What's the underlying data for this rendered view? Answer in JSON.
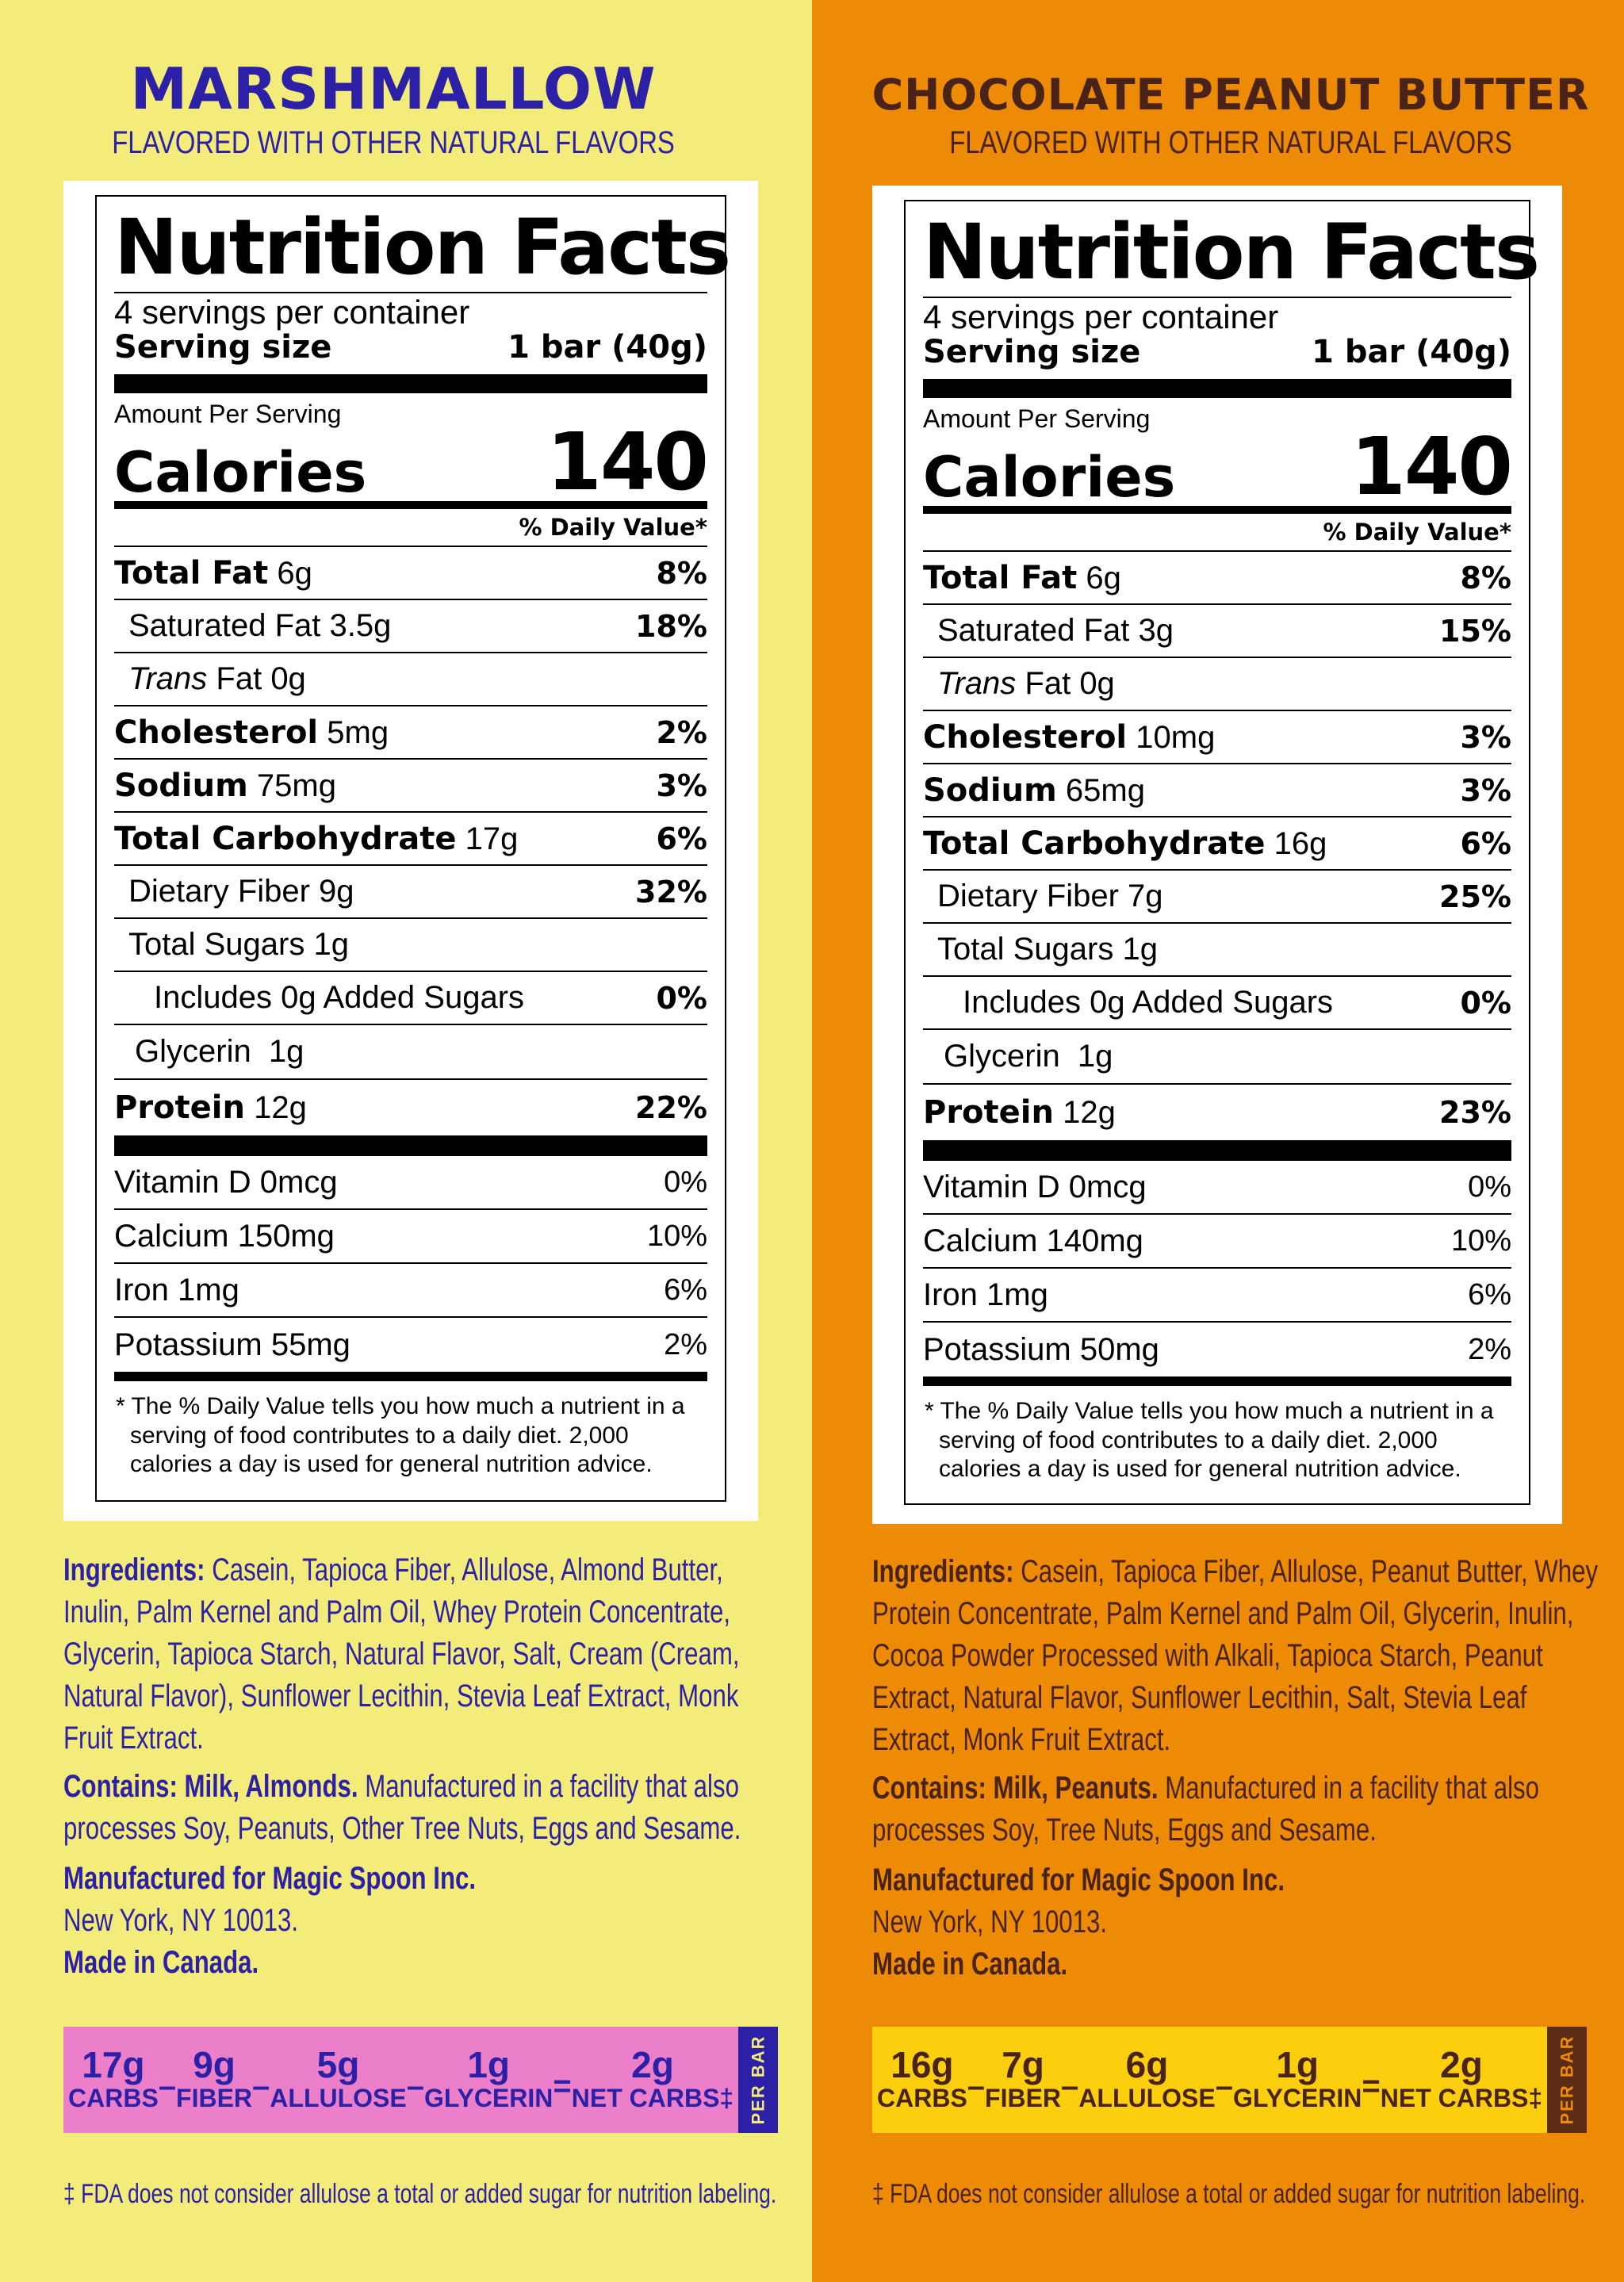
{
  "left": {
    "flavor": "MARSHMALLOW",
    "subtitle": "FLAVORED WITH OTHER NATURAL FLAVORS",
    "nf": {
      "title": "Nutrition Facts",
      "servings": "4 servings per container",
      "serving_label": "Serving size",
      "serving_value": "1 bar (40g)",
      "amount": "Amount Per Serving",
      "calories_label": "Calories",
      "calories": "140",
      "dv_header": "% Daily Value*",
      "total_fat": {
        "label": "Total Fat",
        "amt": "6g",
        "pct": "8%"
      },
      "sat_fat": {
        "label": "Saturated Fat 3.5g",
        "pct": "18%"
      },
      "trans_fat": {
        "italic": "Trans",
        "label": "Fat 0g"
      },
      "cholesterol": {
        "label": "Cholesterol",
        "amt": "5mg",
        "pct": "2%"
      },
      "sodium": {
        "label": "Sodium",
        "amt": "75mg",
        "pct": "3%"
      },
      "carb": {
        "label": "Total Carbohydrate",
        "amt": "17g",
        "pct": "6%"
      },
      "fiber": {
        "label": "Dietary Fiber 9g",
        "pct": "32%"
      },
      "sugars": {
        "label": "Total Sugars 1g"
      },
      "added_sugars": {
        "label": "Includes 0g Added Sugars",
        "pct": "0%"
      },
      "glycerin": {
        "label": "Glycerin  1g"
      },
      "protein": {
        "label": "Protein",
        "amt": "12g",
        "pct": "22%"
      },
      "vitd": {
        "label": "Vitamin D 0mcg",
        "pct": "0%"
      },
      "calcium": {
        "label": "Calcium 150mg",
        "pct": "10%"
      },
      "iron": {
        "label": "Iron 1mg",
        "pct": "6%"
      },
      "potassium": {
        "label": "Potassium 55mg",
        "pct": "2%"
      },
      "footnote": "* The % Daily Value tells you how much a nutrient in a serving of food contributes to a daily diet. 2,000 calories a day is used for general nutrition advice."
    },
    "ingredients_label": "Ingredients:",
    "ingredients": "Casein, Tapioca Fiber, Allulose, Almond Butter, Inulin, Palm Kernel and Palm Oil, Whey Protein Concentrate, Glycerin, Tapioca Starch, Natural Flavor, Salt, Cream (Cream, Natural Flavor), Sunflower Lecithin, Stevia Leaf Extract, Monk Fruit Extract.",
    "contains_label": "Contains: Milk, Almonds.",
    "contains": "Manufactured in a facility that also processes Soy, Peanuts, Other Tree Nuts, Eggs and Sesame.",
    "mfg_line1": "Manufactured for Magic Spoon Inc.",
    "mfg_line2": "New York, NY 10013.",
    "mfg_line3": "Made in Canada.",
    "netcarbs": {
      "carbs_val": "17g",
      "carbs_lab": "CARBS",
      "fiber_val": "9g",
      "fiber_lab": "FIBER",
      "allulose_val": "5g",
      "allulose_lab": "ALLULOSE",
      "glycerin_val": "1g",
      "glycerin_lab": "GLYCERIN",
      "net_val": "2g",
      "net_lab": "NET CARBS‡",
      "minus": "–",
      "equals": "=",
      "per_bar": "PER BAR"
    },
    "fda_note": "‡ FDA does not consider allulose a total or added sugar for nutrition labeling."
  },
  "right": {
    "flavor": "CHOCOLATE PEANUT BUTTER",
    "subtitle": "FLAVORED WITH OTHER NATURAL FLAVORS",
    "nf": {
      "title": "Nutrition Facts",
      "servings": "4 servings per container",
      "serving_label": "Serving size",
      "serving_value": "1 bar (40g)",
      "amount": "Amount Per Serving",
      "calories_label": "Calories",
      "calories": "140",
      "dv_header": "% Daily Value*",
      "total_fat": {
        "label": "Total Fat",
        "amt": "6g",
        "pct": "8%"
      },
      "sat_fat": {
        "label": "Saturated Fat 3g",
        "pct": "15%"
      },
      "trans_fat": {
        "italic": "Trans",
        "label": "Fat 0g"
      },
      "cholesterol": {
        "label": "Cholesterol",
        "amt": "10mg",
        "pct": "3%"
      },
      "sodium": {
        "label": "Sodium",
        "amt": "65mg",
        "pct": "3%"
      },
      "carb": {
        "label": "Total Carbohydrate",
        "amt": "16g",
        "pct": "6%"
      },
      "fiber": {
        "label": "Dietary Fiber 7g",
        "pct": "25%"
      },
      "sugars": {
        "label": "Total Sugars 1g"
      },
      "added_sugars": {
        "label": "Includes 0g Added Sugars",
        "pct": "0%"
      },
      "glycerin": {
        "label": "Glycerin  1g"
      },
      "protein": {
        "label": "Protein",
        "amt": "12g",
        "pct": "23%"
      },
      "vitd": {
        "label": "Vitamin D 0mcg",
        "pct": "0%"
      },
      "calcium": {
        "label": "Calcium 140mg",
        "pct": "10%"
      },
      "iron": {
        "label": "Iron 1mg",
        "pct": "6%"
      },
      "potassium": {
        "label": "Potassium 50mg",
        "pct": "2%"
      },
      "footnote": "* The % Daily Value tells you how much a nutrient in a serving of food contributes to a daily diet. 2,000 calories a day is used for general nutrition advice."
    },
    "ingredients_label": "Ingredients:",
    "ingredients": "Casein, Tapioca Fiber, Allulose, Peanut Butter, Whey Protein Concentrate, Palm Kernel and Palm Oil, Glycerin, Inulin, Cocoa Powder Processed with Alkali, Tapioca Starch, Peanut Extract, Natural Flavor, Sunflower Lecithin, Salt, Stevia Leaf Extract, Monk Fruit Extract.",
    "contains_label": "Contains: Milk, Peanuts.",
    "contains": "Manufactured in a facility that also processes Soy, Tree Nuts, Eggs and Sesame.",
    "mfg_line1": "Manufactured for Magic Spoon Inc.",
    "mfg_line2": "New York, NY 10013.",
    "mfg_line3": "Made in Canada.",
    "netcarbs": {
      "carbs_val": "16g",
      "carbs_lab": "CARBS",
      "fiber_val": "7g",
      "fiber_lab": "FIBER",
      "allulose_val": "6g",
      "allulose_lab": "ALLULOSE",
      "glycerin_val": "1g",
      "glycerin_lab": "GLYCERIN",
      "net_val": "2g",
      "net_lab": "NET CARBS‡",
      "minus": "–",
      "equals": "=",
      "per_bar": "PER BAR"
    },
    "fda_note": "‡ FDA does not consider allulose a total or added sugar for nutrition labeling."
  },
  "colors": {
    "left_bg": "#f4ec7a",
    "left_text": "#2c21a6",
    "left_netbar": "#ec7fc9",
    "right_bg": "#ed8a06",
    "right_text": "#4a2318",
    "right_netbar": "#fbcf0d"
  }
}
